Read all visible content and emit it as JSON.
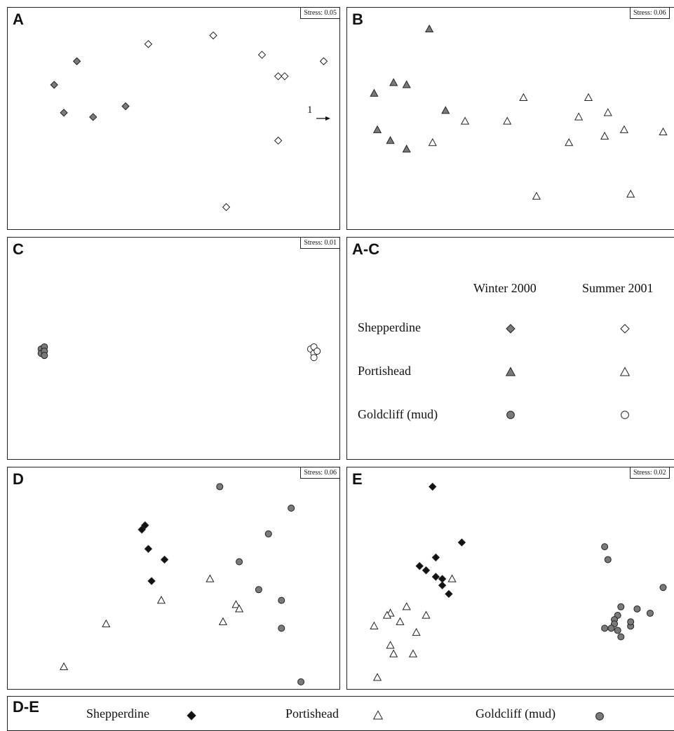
{
  "chart_data": [
    {
      "panel": "A",
      "type": "scatter",
      "stress_label": "Stress: 0.05",
      "annotation": "1",
      "series": [
        {
          "group": "Shepperdine",
          "season": "Winter 2000",
          "marker": "diamond",
          "fill": "#7a7a7a",
          "points": [
            [
              0.13,
              0.34
            ],
            [
              0.2,
              0.23
            ],
            [
              0.16,
              0.47
            ],
            [
              0.25,
              0.49
            ],
            [
              0.35,
              0.44
            ]
          ]
        },
        {
          "group": "Shepperdine",
          "season": "Summer 2001",
          "marker": "diamond",
          "fill": "#ffffff",
          "points": [
            [
              0.42,
              0.15
            ],
            [
              0.62,
              0.11
            ],
            [
              0.77,
              0.2
            ],
            [
              0.82,
              0.3
            ],
            [
              0.84,
              0.3
            ],
            [
              0.96,
              0.23
            ],
            [
              0.82,
              0.6
            ],
            [
              0.66,
              0.91
            ]
          ]
        }
      ]
    },
    {
      "panel": "B",
      "type": "scatter",
      "stress_label": "Stress: 0.06",
      "series": [
        {
          "group": "Portishead",
          "season": "Winter 2000",
          "marker": "triangle",
          "fill": "#7a7a7a",
          "points": [
            [
              0.24,
              0.08
            ],
            [
              0.13,
              0.33
            ],
            [
              0.17,
              0.34
            ],
            [
              0.07,
              0.38
            ],
            [
              0.08,
              0.55
            ],
            [
              0.12,
              0.6
            ],
            [
              0.17,
              0.64
            ],
            [
              0.29,
              0.46
            ]
          ]
        },
        {
          "group": "Portishead",
          "season": "Summer 2001",
          "marker": "triangle",
          "fill": "#ffffff",
          "points": [
            [
              0.25,
              0.61
            ],
            [
              0.35,
              0.51
            ],
            [
              0.48,
              0.51
            ],
            [
              0.53,
              0.4
            ],
            [
              0.7,
              0.49
            ],
            [
              0.73,
              0.4
            ],
            [
              0.79,
              0.47
            ],
            [
              0.67,
              0.61
            ],
            [
              0.86,
              0.85
            ],
            [
              0.84,
              0.55
            ],
            [
              0.78,
              0.58
            ],
            [
              0.96,
              0.56
            ],
            [
              0.57,
              0.86
            ]
          ]
        }
      ]
    },
    {
      "panel": "C",
      "type": "scatter",
      "stress_label": "Stress: 0.01",
      "series": [
        {
          "group": "Goldcliff (mud)",
          "season": "Winter 2000",
          "marker": "circle",
          "fill": "#7a7a7a",
          "points": [
            [
              0.09,
              0.5
            ],
            [
              0.1,
              0.49
            ],
            [
              0.09,
              0.52
            ],
            [
              0.1,
              0.51
            ],
            [
              0.1,
              0.53
            ]
          ]
        },
        {
          "group": "Goldcliff (mud)",
          "season": "Summer 2001",
          "marker": "circle",
          "fill": "#ffffff",
          "points": [
            [
              0.92,
              0.5
            ],
            [
              0.93,
              0.49
            ],
            [
              0.93,
              0.52
            ],
            [
              0.94,
              0.51
            ],
            [
              0.93,
              0.54
            ]
          ]
        }
      ]
    },
    {
      "panel": "D",
      "type": "scatter",
      "stress_label": "Stress: 0.06",
      "series": [
        {
          "group": "Shepperdine",
          "marker": "diamond",
          "fill": "#111111",
          "points": [
            [
              0.4,
              0.27
            ],
            [
              0.41,
              0.25
            ],
            [
              0.42,
              0.36
            ],
            [
              0.47,
              0.41
            ],
            [
              0.43,
              0.51
            ]
          ]
        },
        {
          "group": "Portishead",
          "marker": "triangle",
          "fill": "#ffffff",
          "points": [
            [
              0.16,
              0.91
            ],
            [
              0.29,
              0.71
            ],
            [
              0.46,
              0.6
            ],
            [
              0.61,
              0.5
            ],
            [
              0.69,
              0.62
            ],
            [
              0.7,
              0.64
            ],
            [
              0.65,
              0.7
            ]
          ]
        },
        {
          "group": "Goldcliff (mud)",
          "marker": "circle",
          "fill": "#7a7a7a",
          "points": [
            [
              0.64,
              0.07
            ],
            [
              0.86,
              0.17
            ],
            [
              0.79,
              0.29
            ],
            [
              0.7,
              0.42
            ],
            [
              0.76,
              0.55
            ],
            [
              0.83,
              0.6
            ],
            [
              0.83,
              0.73
            ],
            [
              0.89,
              0.98
            ]
          ]
        }
      ]
    },
    {
      "panel": "E",
      "type": "scatter",
      "stress_label": "Stress: 0.02",
      "series": [
        {
          "group": "Shepperdine",
          "marker": "diamond",
          "fill": "#111111",
          "points": [
            [
              0.25,
              0.07
            ],
            [
              0.34,
              0.33
            ],
            [
              0.26,
              0.4
            ],
            [
              0.21,
              0.44
            ],
            [
              0.23,
              0.46
            ],
            [
              0.26,
              0.49
            ],
            [
              0.28,
              0.5
            ],
            [
              0.28,
              0.53
            ],
            [
              0.3,
              0.57
            ]
          ]
        },
        {
          "group": "Portishead",
          "marker": "triangle",
          "fill": "#ffffff",
          "points": [
            [
              0.31,
              0.5
            ],
            [
              0.17,
              0.63
            ],
            [
              0.15,
              0.7
            ],
            [
              0.12,
              0.66
            ],
            [
              0.11,
              0.67
            ],
            [
              0.07,
              0.72
            ],
            [
              0.23,
              0.67
            ],
            [
              0.2,
              0.75
            ],
            [
              0.12,
              0.81
            ],
            [
              0.13,
              0.85
            ],
            [
              0.19,
              0.85
            ],
            [
              0.08,
              0.96
            ]
          ]
        },
        {
          "group": "Goldcliff (mud)",
          "marker": "circle",
          "fill": "#7a7a7a",
          "points": [
            [
              0.78,
              0.35
            ],
            [
              0.79,
              0.41
            ],
            [
              0.96,
              0.54
            ],
            [
              0.83,
              0.63
            ],
            [
              0.88,
              0.64
            ],
            [
              0.92,
              0.66
            ],
            [
              0.82,
              0.67
            ],
            [
              0.81,
              0.69
            ],
            [
              0.81,
              0.71
            ],
            [
              0.8,
              0.73
            ],
            [
              0.82,
              0.74
            ],
            [
              0.83,
              0.77
            ],
            [
              0.86,
              0.72
            ],
            [
              0.86,
              0.7
            ],
            [
              0.78,
              0.73
            ]
          ]
        }
      ]
    }
  ],
  "panel_labels": {
    "a": "A",
    "b": "B",
    "c": "C",
    "d": "D",
    "e": "E",
    "ac": "A-C",
    "de": "D-E"
  },
  "legend_ac": {
    "col1": "Winter 2000",
    "col2": "Summer 2001",
    "rows": [
      "Shepperdine",
      "Portishead",
      "Goldcliff (mud)"
    ]
  },
  "legend_de": {
    "items": [
      "Shepperdine",
      "Portishead",
      "Goldcliff (mud)"
    ]
  },
  "colors": {
    "grey_fill": "#7a7a7a",
    "black_fill": "#111111",
    "outline": "#222222"
  }
}
